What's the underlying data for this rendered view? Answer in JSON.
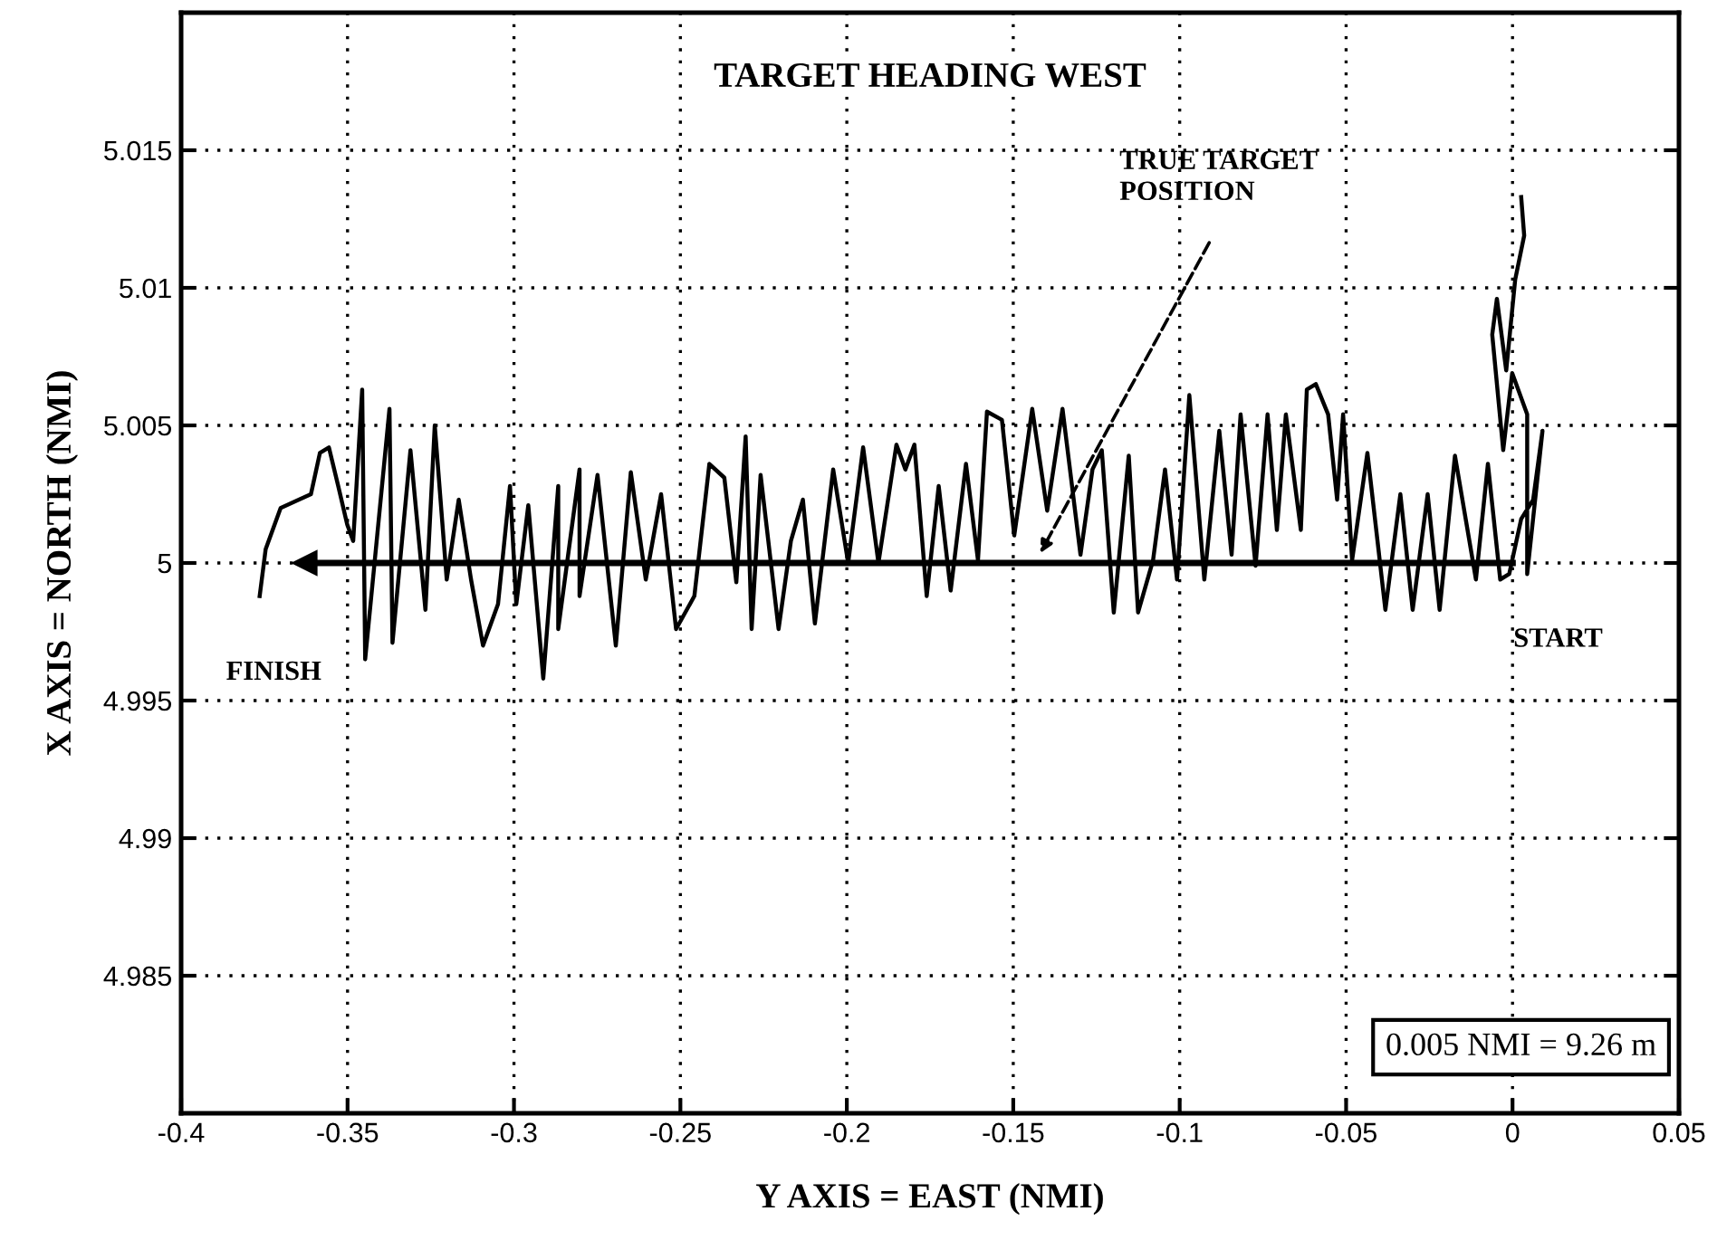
{
  "chart_data": {
    "type": "line",
    "title": "TARGET HEADING WEST",
    "xlabel": "Y AXIS = EAST (NMI)",
    "ylabel": "X AXIS = NORTH (NMI)",
    "xlim": [
      -0.4,
      0.05
    ],
    "xticks": [
      -0.4,
      -0.35,
      -0.3,
      -0.25,
      -0.2,
      -0.15,
      -0.1,
      -0.05,
      0,
      0.05
    ],
    "ylim": [
      4.98,
      5.02
    ],
    "yticks": [
      4.985,
      4.99,
      4.995,
      5,
      5.005,
      5.01,
      5.015
    ],
    "grid": true,
    "legend": false,
    "series": [
      {
        "color": "#000000",
        "x": [
          0,
          -0.3628
        ],
        "values": [
          5,
          5
        ],
        "marker": "triangle"
      },
      {
        "color": "#000000",
        "x": [
          0.0026,
          0.0035,
          0.0008,
          -0.0019,
          -0.0047,
          -0.0061,
          -0.0028,
          -0.0001,
          0.0044,
          0.0044,
          0.009,
          0.0062,
          0.0026,
          -0.001,
          -0.0037,
          -0.0074,
          -0.011,
          -0.0173,
          -0.0219,
          -0.0255,
          -0.03,
          -0.0337,
          -0.0382,
          -0.0436,
          -0.0482,
          -0.0509,
          -0.0527,
          -0.0554,
          -0.0591,
          -0.0618,
          -0.0636,
          -0.0681,
          -0.0708,
          -0.0736,
          -0.0772,
          -0.0817,
          -0.0844,
          -0.0881,
          -0.0926,
          -0.0971,
          -0.1008,
          -0.1044,
          -0.108,
          -0.1125,
          -0.1153,
          -0.1198,
          -0.1234,
          -0.1262,
          -0.1298,
          -0.1352,
          -0.1398,
          -0.1443,
          -0.1497,
          -0.1534,
          -0.1579,
          -0.1606,
          -0.1642,
          -0.1688,
          -0.1724,
          -0.176,
          -0.1797,
          -0.1824,
          -0.1851,
          -0.1905,
          -0.1951,
          -0.1996,
          -0.2041,
          -0.2096,
          -0.2132,
          -0.2168,
          -0.2205,
          -0.2259,
          -0.2286,
          -0.2304,
          -0.2332,
          -0.2368,
          -0.2413,
          -0.2458,
          -0.2513,
          -0.2558,
          -0.2604,
          -0.2649,
          -0.2694,
          -0.2749,
          -0.2803,
          -0.2803,
          -0.2867,
          -0.2867,
          -0.2912,
          -0.2957,
          -0.2993,
          -0.3012,
          -0.3048,
          -0.3093,
          -0.3129,
          -0.3166,
          -0.3202,
          -0.3238,
          -0.3266,
          -0.3311,
          -0.3365,
          -0.3374,
          -0.3447,
          -0.3456,
          -0.3483,
          -0.3501,
          -0.3528,
          -0.3556,
          -0.3583,
          -0.361,
          -0.3646,
          -0.3701,
          -0.3746,
          -0.3764
        ],
        "values": [
          5.0133,
          5.0119,
          5.0103,
          5.007,
          5.0096,
          5.0083,
          5.0041,
          5.0069,
          5.0054,
          4.9996,
          5.0048,
          5.0023,
          5.0016,
          4.9996,
          4.9994,
          5.0036,
          4.9994,
          5.0039,
          4.9983,
          5.0025,
          4.9983,
          5.0025,
          4.9983,
          5.004,
          5.0001,
          5.0054,
          5.0023,
          5.0054,
          5.0065,
          5.0063,
          5.0012,
          5.0054,
          5.0012,
          5.0054,
          4.9999,
          5.0054,
          5.0003,
          5.0048,
          4.9994,
          5.0061,
          4.9994,
          5.0034,
          5.0001,
          4.9982,
          5.0039,
          4.9982,
          5.0041,
          5.0034,
          5.0003,
          5.0056,
          5.0019,
          5.0056,
          5.001,
          5.0052,
          5.0055,
          5.0001,
          5.0036,
          4.999,
          5.0028,
          4.9988,
          5.0043,
          5.0034,
          5.0043,
          5.0,
          5.0042,
          5.0,
          5.0034,
          4.9978,
          5.0023,
          5.0008,
          4.9976,
          5.0032,
          4.9976,
          5.0046,
          4.9993,
          5.0031,
          5.0036,
          4.9988,
          4.9976,
          5.0025,
          4.9994,
          5.0033,
          4.997,
          5.0032,
          4.9988,
          5.0034,
          4.9976,
          5.0028,
          4.9958,
          5.0021,
          4.9985,
          5.0028,
          4.9985,
          4.997,
          4.9994,
          5.0023,
          4.9994,
          5.005,
          4.9983,
          5.0041,
          4.9971,
          5.0056,
          4.9965,
          5.0063,
          5.0008,
          5.0014,
          5.0028,
          5.0042,
          5.004,
          5.0025,
          5.0023,
          5.002,
          5.0005,
          4.9988
        ]
      }
    ],
    "annotations": [
      "TRUE TARGET\nPOSITION",
      "START",
      "FINISH",
      "0.005 NMI = 9.26 m"
    ]
  }
}
